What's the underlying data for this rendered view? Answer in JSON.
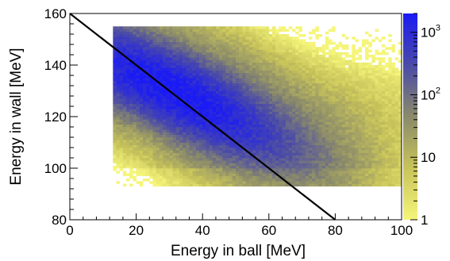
{
  "chart_data": {
    "type": "heatmap",
    "title": "",
    "xlabel": "Energy in ball [MeV]",
    "ylabel": "Energy in wall [MeV]",
    "xlim": [
      0,
      100
    ],
    "ylim": [
      80,
      160
    ],
    "x_ticks": [
      "0",
      "20",
      "40",
      "60",
      "80",
      "100"
    ],
    "y_ticks": [
      "80",
      "100",
      "120",
      "140",
      "160"
    ],
    "z_scale": "log",
    "z_range": [
      1,
      2000
    ],
    "colorbar": {
      "labels": [
        {
          "base": "1",
          "exp": ""
        },
        {
          "base": "10",
          "exp": ""
        },
        {
          "base": "10",
          "exp": "2"
        },
        {
          "base": "10",
          "exp": "3"
        }
      ],
      "label_values": [
        1,
        10,
        100,
        1000
      ],
      "colors": [
        "#f5f57a",
        "#c8c45a",
        "#8a8a6a",
        "#4a4aa8",
        "#1a1af5"
      ]
    },
    "distribution": {
      "ball_energy_range": [
        13,
        100
      ],
      "wall_energy_range": [
        93,
        155
      ],
      "peak_ball": 30,
      "peak_wall": 130,
      "ridge_slope": -0.6,
      "peak_counts": 2000
    },
    "overlay_line": {
      "points": [
        [
          0,
          160
        ],
        [
          80,
          80
        ]
      ],
      "color": "#000000"
    },
    "grid": false,
    "legend": "none"
  }
}
